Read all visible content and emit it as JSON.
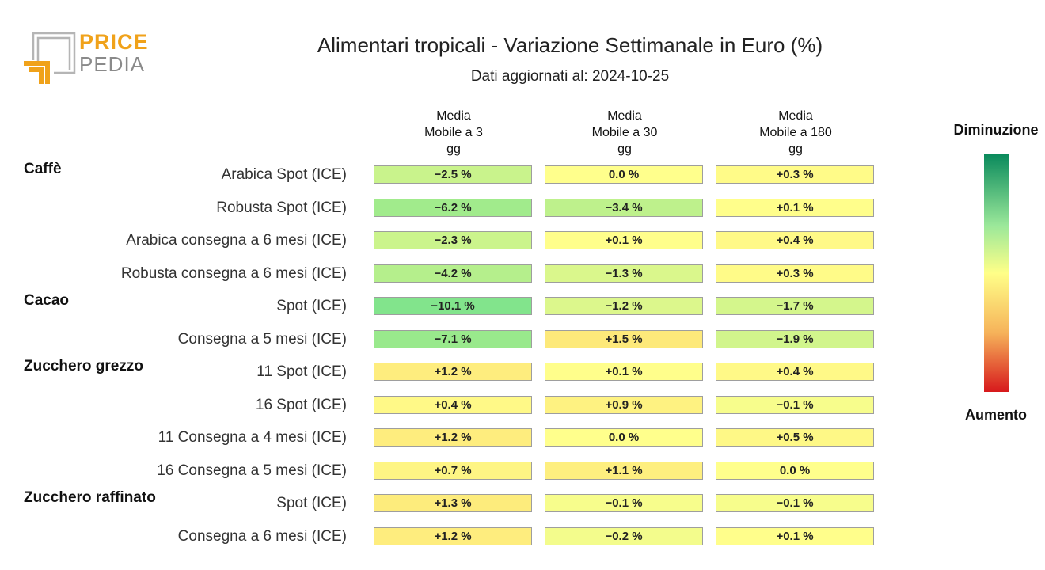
{
  "logo": {
    "line1": "PRICE",
    "line2": "PEDIA",
    "accent_color": "#f0a21a",
    "secondary_color": "#8a8a8a"
  },
  "chart_data": {
    "type": "table",
    "title": "Alimentari tropicali - Variazione Settimanale in Euro (%)",
    "subtitle": "Dati aggiornati al: 2024-10-25",
    "columns": [
      "Media\nMobile a 3\ngg",
      "Media\nMobile a 30\ngg",
      "Media\nMobile a 180\ngg"
    ],
    "groups": [
      {
        "name": "Caffè",
        "rows": [
          {
            "label": "Arabica Spot (ICE)",
            "values": [
              -2.5,
              0.0,
              0.3
            ],
            "display": [
              "−2.5 %",
              "0.0 %",
              "+0.3 %"
            ]
          },
          {
            "label": "Robusta Spot (ICE)",
            "values": [
              -6.2,
              -3.4,
              0.1
            ],
            "display": [
              "−6.2 %",
              "−3.4 %",
              "+0.1 %"
            ]
          },
          {
            "label": "Arabica consegna a 6 mesi (ICE)",
            "values": [
              -2.3,
              0.1,
              0.4
            ],
            "display": [
              "−2.3 %",
              "+0.1 %",
              "+0.4 %"
            ]
          },
          {
            "label": "Robusta consegna a 6 mesi (ICE)",
            "values": [
              -4.2,
              -1.3,
              0.3
            ],
            "display": [
              "−4.2 %",
              "−1.3 %",
              "+0.3 %"
            ]
          }
        ]
      },
      {
        "name": "Cacao",
        "rows": [
          {
            "label": "Spot (ICE)",
            "values": [
              -10.1,
              -1.2,
              -1.7
            ],
            "display": [
              "−10.1 %",
              "−1.2 %",
              "−1.7 %"
            ]
          },
          {
            "label": "Consegna a 5 mesi (ICE)",
            "values": [
              -7.1,
              1.5,
              -1.9
            ],
            "display": [
              "−7.1 %",
              "+1.5 %",
              "−1.9 %"
            ]
          }
        ]
      },
      {
        "name": "Zucchero grezzo",
        "rows": [
          {
            "label": "11 Spot (ICE)",
            "values": [
              1.2,
              0.1,
              0.4
            ],
            "display": [
              "+1.2 %",
              "+0.1 %",
              "+0.4 %"
            ]
          },
          {
            "label": "16 Spot (ICE)",
            "values": [
              0.4,
              0.9,
              -0.1
            ],
            "display": [
              "+0.4 %",
              "+0.9 %",
              "−0.1 %"
            ]
          },
          {
            "label": "11 Consegna a 4 mesi (ICE)",
            "values": [
              1.2,
              0.0,
              0.5
            ],
            "display": [
              "+1.2 %",
              "0.0 %",
              "+0.5 %"
            ]
          },
          {
            "label": "16 Consegna a 5 mesi (ICE)",
            "values": [
              0.7,
              1.1,
              0.0
            ],
            "display": [
              "+0.7 %",
              "+1.1 %",
              "0.0 %"
            ]
          }
        ]
      },
      {
        "name": "Zucchero raffinato",
        "rows": [
          {
            "label": "Spot (ICE)",
            "values": [
              1.3,
              -0.1,
              -0.1
            ],
            "display": [
              "+1.3 %",
              "−0.1 %",
              "−0.1 %"
            ]
          },
          {
            "label": "Consegna a 6 mesi (ICE)",
            "values": [
              1.2,
              -0.2,
              0.1
            ],
            "display": [
              "+1.2 %",
              "−0.2 %",
              "+0.1 %"
            ]
          }
        ]
      }
    ],
    "legend": {
      "top_label": "Diminuzione",
      "bottom_label": "Aumento",
      "color_top": "#0a8a5c",
      "color_mid": "#ffff88",
      "color_bottom": "#d7191c"
    }
  }
}
